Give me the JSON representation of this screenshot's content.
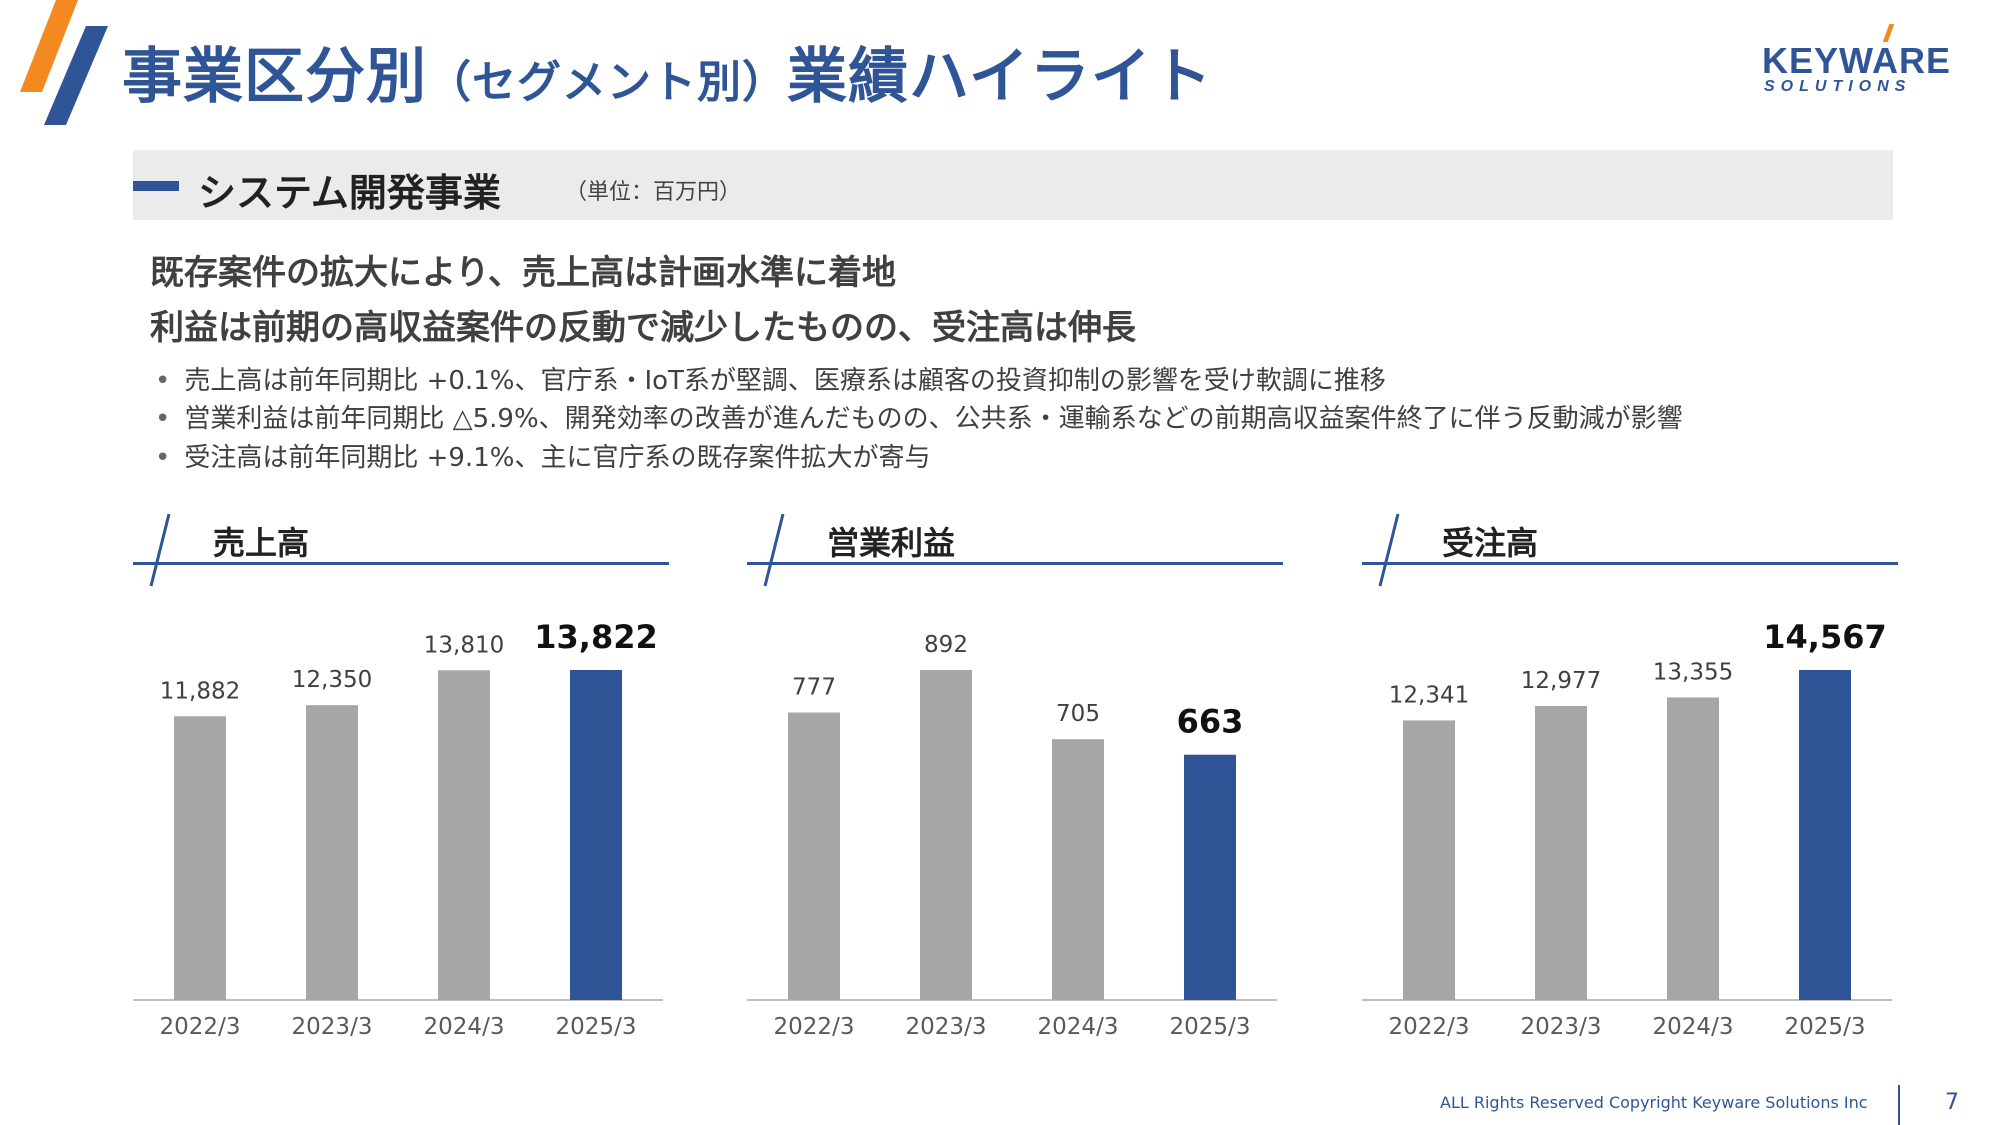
{
  "header": {
    "title_main": "事業区分別",
    "title_paren": "（セグメント別）",
    "title_tail": "業績ハイライト",
    "logo_main": "KEYWARE",
    "logo_sub": "SOLUTIONS"
  },
  "section": {
    "title": "システム開発事業",
    "unit": "（単位：百万円）"
  },
  "headlines": [
    "既存案件の拡大により、売上高は計画水準に着地",
    "利益は前期の高収益案件の反動で減少したものの、受注高は伸長"
  ],
  "bullets": [
    "売上高は前年同期比 +0.1%、官庁系・IoT系が堅調、医療系は顧客の投資抑制の影響を受け軟調に推移",
    "営業利益は前年同期比 △5.9%、開発効率の改善が進んだものの、公共系・運輸系などの前期高収益案件終了に伴う反動減が影響",
    "受注高は前年同期比 +9.1%、主に官庁系の既存案件拡大が寄与"
  ],
  "bullet_marker": "•",
  "colors": {
    "accent": "#2f5597",
    "bar_past": "#a6a6a6",
    "bar_current": "#2f5597",
    "orange": "#f4891f"
  },
  "chart_data": [
    {
      "type": "bar",
      "title": "売上高",
      "categories": [
        "2022/3",
        "2023/3",
        "2024/3",
        "2025/3"
      ],
      "values": [
        11882,
        12350,
        13810,
        13822
      ],
      "labels": [
        "11,882",
        "12,350",
        "13,810",
        "13,822"
      ],
      "highlight_index": 3
    },
    {
      "type": "bar",
      "title": "営業利益",
      "categories": [
        "2022/3",
        "2023/3",
        "2024/3",
        "2025/3"
      ],
      "values": [
        777,
        892,
        705,
        663
      ],
      "labels": [
        "777",
        "892",
        "705",
        "663"
      ],
      "highlight_index": 3
    },
    {
      "type": "bar",
      "title": "受注高",
      "categories": [
        "2022/3",
        "2023/3",
        "2024/3",
        "2025/3"
      ],
      "values": [
        12341,
        12977,
        13355,
        14567
      ],
      "labels": [
        "12,341",
        "12,977",
        "13,355",
        "14,567"
      ],
      "highlight_index": 3
    }
  ],
  "footer": {
    "copyright": "ALL Rights Reserved Copyright Keyware Solutions Inc",
    "page_number": "7"
  }
}
